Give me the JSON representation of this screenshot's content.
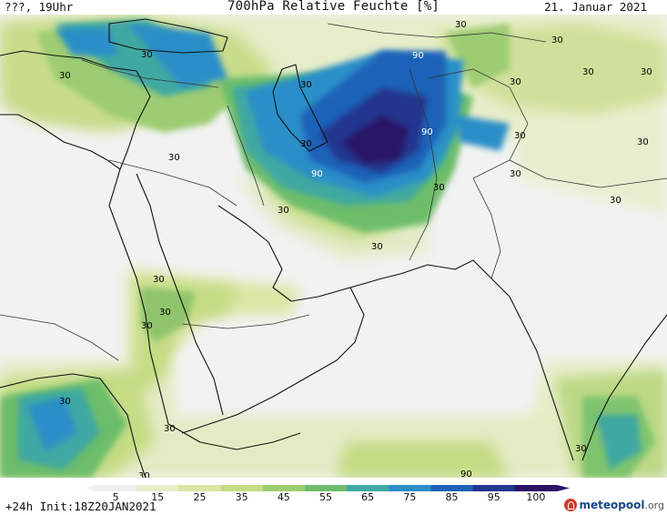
{
  "header": {
    "left_label": "???, 19Uhr",
    "title": "700hPa Relative Feuchte [%]",
    "date": "21. Januar 2021"
  },
  "footer": {
    "left_label": "+24h Init:18Z20JAN2021",
    "brand_name": "meteopool",
    "brand_tld": ".org"
  },
  "legend": {
    "ticks": [
      "5",
      "15",
      "25",
      "35",
      "45",
      "55",
      "65",
      "75",
      "85",
      "95",
      "100"
    ],
    "colors": [
      "#f0f0f0",
      "#e6edc8",
      "#d9e6a4",
      "#c4dc84",
      "#9dcc72",
      "#6dbd6a",
      "#3fa8a2",
      "#2b8fc8",
      "#1f62b8",
      "#24358f",
      "#2a1466"
    ]
  },
  "map": {
    "contour_labels": [
      "30",
      "30",
      "30",
      "30",
      "30",
      "30",
      "30",
      "30",
      "30",
      "30",
      "30",
      "30",
      "30",
      "30",
      "30",
      "30",
      "30",
      "30",
      "30",
      "30",
      "30",
      "30",
      "30",
      "30",
      "90",
      "90",
      "90",
      "90"
    ],
    "colors": {
      "background": "#f2f2f2",
      "coast": "#111111",
      "border": "#333333"
    }
  }
}
